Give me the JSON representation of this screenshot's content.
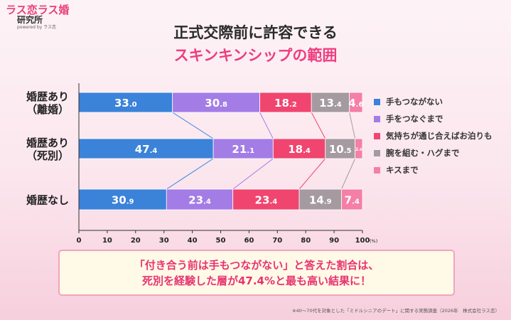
{
  "logo": {
    "line1": "ラス恋ラス婚",
    "line2": "研究所",
    "line3": "powered by ラス恋"
  },
  "title": {
    "line1": "正式交際前に許容できる",
    "line2": "スキンキンシップの範囲"
  },
  "chart_data": {
    "type": "bar",
    "orientation": "horizontal-stacked-100",
    "categories": [
      [
        "婚歴あり",
        "（離婚）"
      ],
      [
        "婚歴あり",
        "（死別）"
      ],
      [
        "婚歴なし"
      ]
    ],
    "series": [
      {
        "name": "手もつながない",
        "color": "#3b82d9",
        "values": [
          33.0,
          47.4,
          30.9
        ]
      },
      {
        "name": "手をつなぐまで",
        "color": "#a37ce6",
        "values": [
          30.8,
          21.1,
          23.4
        ]
      },
      {
        "name": "気持ちが通じ合えばお泊りも",
        "color": "#f0456f",
        "values": [
          18.2,
          18.4,
          23.4
        ]
      },
      {
        "name": "腕を組む・ハグまで",
        "color": "#a59aa0",
        "values": [
          13.4,
          10.5,
          14.9
        ]
      },
      {
        "name": "キスまで",
        "color": "#f57fa6",
        "values": [
          4.6,
          2.6,
          7.4
        ]
      }
    ],
    "labels": [
      [
        [
          "33",
          ".0"
        ],
        [
          "30",
          ".8"
        ],
        [
          "18",
          ".2"
        ],
        [
          "13",
          ".4"
        ],
        [
          "4",
          ".6"
        ]
      ],
      [
        [
          "47",
          ".4"
        ],
        [
          "21",
          ".1"
        ],
        [
          "18",
          ".4"
        ],
        [
          "10",
          ".5"
        ],
        [
          "2",
          ".6"
        ]
      ],
      [
        [
          "30",
          ".9"
        ],
        [
          "23",
          ".4"
        ],
        [
          "23",
          ".4"
        ],
        [
          "14",
          ".9"
        ],
        [
          "7",
          ".4"
        ]
      ]
    ],
    "x_ticks": [
      "0",
      "10",
      "20",
      "30",
      "40",
      "50",
      "60",
      "70",
      "80",
      "90",
      "100"
    ],
    "x_unit": "(%)",
    "xlim": [
      0,
      100
    ],
    "grid": false,
    "legend_position": "right"
  },
  "callout": {
    "line1": "「付き合う前は手もつながない」と答えた割合は、",
    "line2": "死別を経験した層が47.4%と最も高い結果に！"
  },
  "footnote": "※40〜70代を対象とした「ミドルシニアのデート」に関する実態調査（2026年　株式会社ラス恋）"
}
